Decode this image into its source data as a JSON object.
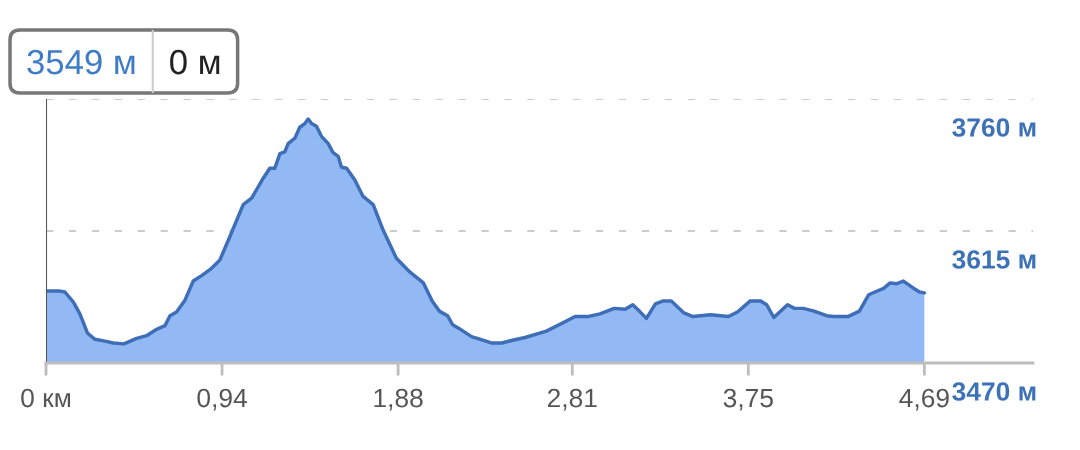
{
  "chart_data": {
    "type": "area",
    "color": "#92b9f4",
    "x": [
      0,
      0.075,
      0.101,
      0.146,
      0.181,
      0.221,
      0.261,
      0.315,
      0.359,
      0.416,
      0.484,
      0.537,
      0.591,
      0.635,
      0.662,
      0.697,
      0.742,
      0.786,
      0.831,
      0.884,
      0.928,
      0.982,
      1.053,
      1.098,
      1.16,
      1.195,
      1.222,
      1.249,
      1.275,
      1.293,
      1.329,
      1.355,
      1.382,
      1.4,
      1.418,
      1.444,
      1.471,
      1.507,
      1.533,
      1.56,
      1.578,
      1.605,
      1.649,
      1.693,
      1.747,
      1.8,
      1.871,
      1.942,
      2.015,
      2.062,
      2.1,
      2.144,
      2.171,
      2.205,
      2.272,
      2.32,
      2.377,
      2.434,
      2.491,
      2.558,
      2.672,
      2.758,
      2.825,
      2.892,
      2.958,
      3.034,
      3.092,
      3.133,
      3.168,
      3.206,
      3.254,
      3.292,
      3.339,
      3.406,
      3.454,
      3.549,
      3.644,
      3.692,
      3.759,
      3.816,
      3.848,
      3.886,
      3.959,
      3.997,
      4.044,
      4.101,
      4.168,
      4.206,
      4.282,
      4.343,
      4.393,
      4.426,
      4.473,
      4.507,
      4.54,
      4.578,
      4.626,
      4.664,
      4.69
    ],
    "values": [
      3549,
      3549,
      3548,
      3537,
      3524,
      3503,
      3496,
      3494,
      3492,
      3491,
      3497,
      3500,
      3507,
      3511,
      3522,
      3526,
      3539,
      3560,
      3566,
      3574,
      3583,
      3609,
      3644,
      3651,
      3673,
      3684,
      3684,
      3700,
      3702,
      3711,
      3717,
      3729,
      3733,
      3738,
      3733,
      3730,
      3719,
      3711,
      3701,
      3697,
      3685,
      3684,
      3671,
      3653,
      3644,
      3616,
      3585,
      3570,
      3558,
      3538,
      3527,
      3522,
      3512,
      3508,
      3499,
      3496,
      3492,
      3492,
      3495,
      3498,
      3505,
      3514,
      3521,
      3521,
      3524,
      3530,
      3529,
      3534,
      3527,
      3519,
      3535,
      3538,
      3538,
      3525,
      3521,
      3523,
      3521,
      3526,
      3538,
      3538,
      3534,
      3520,
      3534,
      3530,
      3530,
      3527,
      3522,
      3521,
      3521,
      3527,
      3545,
      3548,
      3552,
      3558,
      3557,
      3560,
      3553,
      3548,
      3547
    ],
    "xlim": [
      0,
      5.27
    ],
    "xticks": [
      {
        "value": 0,
        "label": "0 км"
      },
      {
        "value": 0.94,
        "label": "0,94"
      },
      {
        "value": 1.88,
        "label": "1,88"
      },
      {
        "value": 2.81,
        "label": "2,81"
      },
      {
        "value": 3.75,
        "label": "3,75"
      },
      {
        "value": 4.69,
        "label": "4,69"
      }
    ],
    "ylim": [
      3470,
      3760
    ],
    "yticks": [
      {
        "value": 3470,
        "label": "3470 м"
      },
      {
        "value": 3615,
        "label": "3615 м"
      },
      {
        "value": 3760,
        "label": "3760 м"
      }
    ],
    "grid": "y",
    "ref_lines": [
      {
        "axis": "x",
        "value": 0,
        "color": "#555555"
      }
    ],
    "annotations": [
      "3549 м",
      "0 м"
    ]
  }
}
